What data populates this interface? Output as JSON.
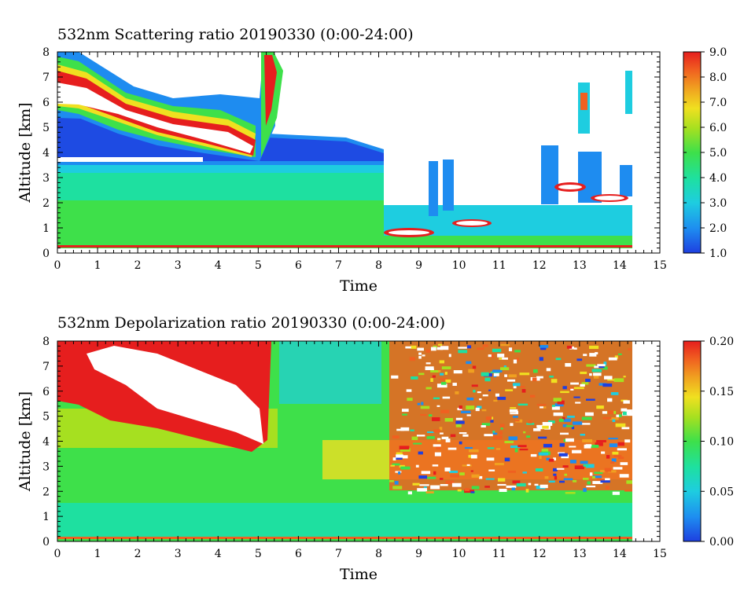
{
  "chart_data": [
    {
      "type": "heatmap",
      "title": "532nm Scattering ratio  20190330 (0:00-24:00)",
      "xlabel": "Time",
      "ylabel": "Altitude [km]",
      "xlim": [
        0,
        15
      ],
      "ylim": [
        0,
        8
      ],
      "x_ticks": [
        "0",
        "1",
        "2",
        "3",
        "4",
        "5",
        "6",
        "7",
        "8",
        "9",
        "10",
        "11",
        "12",
        "13",
        "14",
        "15"
      ],
      "y_ticks": [
        "0",
        "1",
        "2",
        "3",
        "4",
        "5",
        "6",
        "7",
        "8"
      ],
      "colorbar": {
        "range": [
          1.0,
          9.0
        ],
        "ticks": [
          "1.0",
          "2.0",
          "3.0",
          "4.0",
          "5.0",
          "6.0",
          "7.0",
          "8.0",
          "9.0"
        ]
      },
      "data_time_end": 14.3,
      "cloud_boundary_top": [
        [
          0.0,
          8.0
        ],
        [
          0.5,
          7.7
        ],
        [
          1.0,
          7.1
        ],
        [
          1.5,
          6.6
        ],
        [
          2.0,
          6.1
        ],
        [
          2.5,
          5.9
        ],
        [
          3.0,
          6.1
        ],
        [
          3.5,
          6.0
        ],
        [
          4.0,
          6.0
        ],
        [
          4.5,
          5.9
        ],
        [
          5.0,
          6.0
        ],
        [
          5.2,
          8.0
        ]
      ]
    },
    {
      "type": "heatmap",
      "title": "532nm Depolarization ratio  20190330 (0:00-24:00)",
      "xlabel": "Time",
      "ylabel": "Altitude [km]",
      "xlim": [
        0,
        15
      ],
      "ylim": [
        0,
        8
      ],
      "x_ticks": [
        "0",
        "1",
        "2",
        "3",
        "4",
        "5",
        "6",
        "7",
        "8",
        "9",
        "10",
        "11",
        "12",
        "13",
        "14",
        "15"
      ],
      "y_ticks": [
        "0",
        "1",
        "2",
        "3",
        "4",
        "5",
        "6",
        "7",
        "8"
      ],
      "colorbar": {
        "range": [
          0.0,
          0.2
        ],
        "ticks": [
          "0.00",
          "0.05",
          "0.10",
          "0.15",
          "0.20"
        ]
      },
      "data_time_end": 14.3
    }
  ],
  "colorscale": [
    "#1e3fe0",
    "#1e8cf0",
    "#1ecde0",
    "#1ee0a0",
    "#3ee04a",
    "#a6e020",
    "#f0e020",
    "#f0a020",
    "#f06020",
    "#e61e1e"
  ]
}
